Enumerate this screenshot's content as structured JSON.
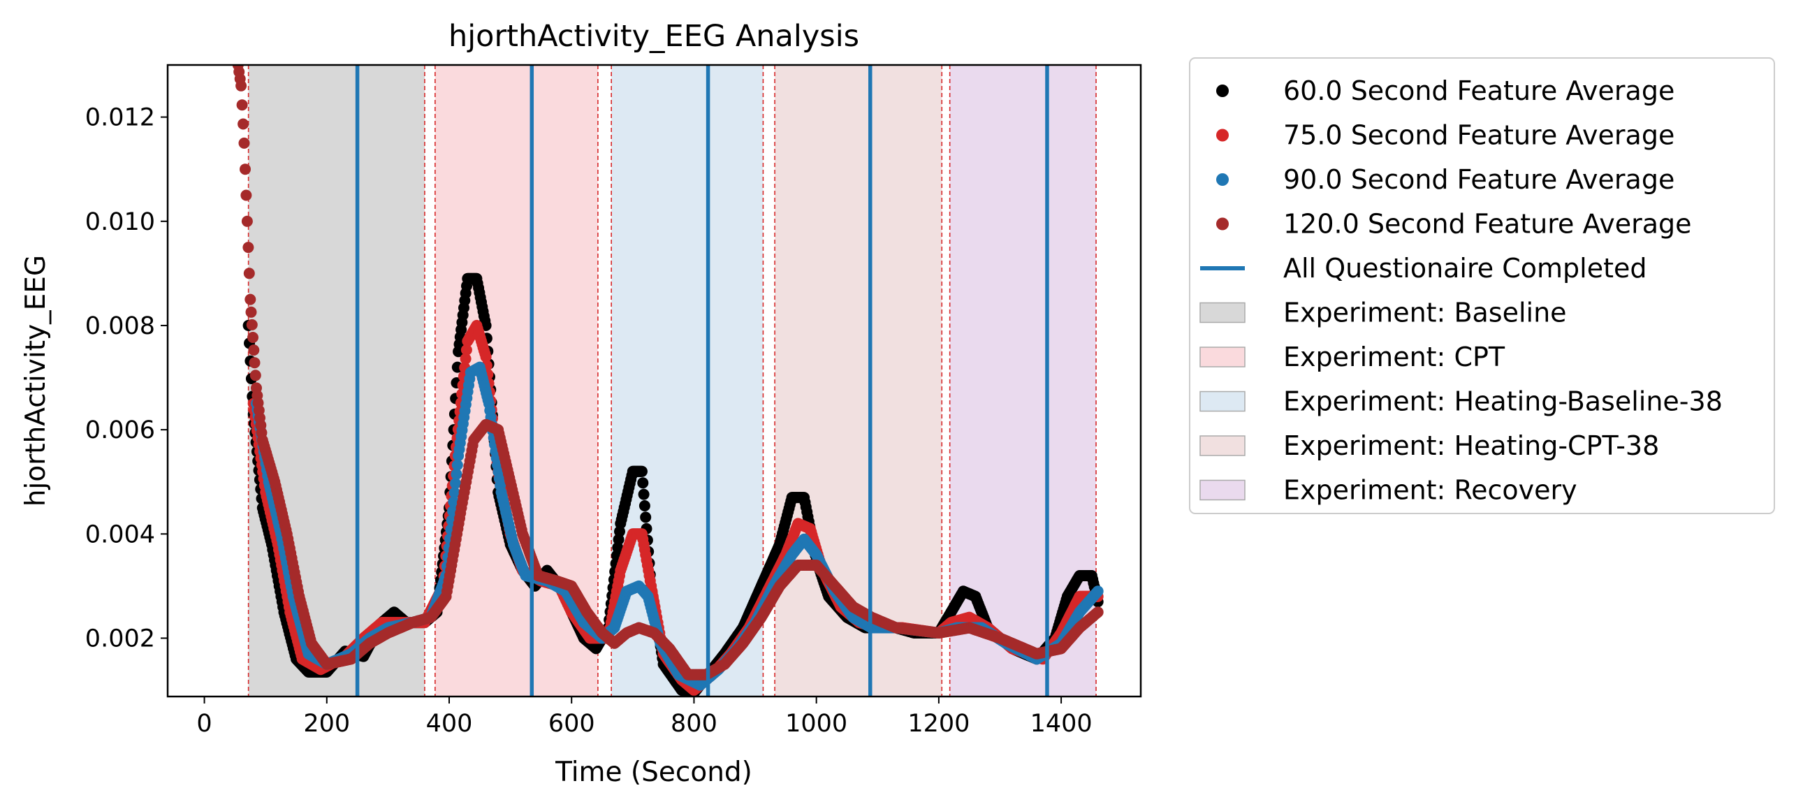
{
  "chart_data": {
    "type": "scatter",
    "title": "hjorthActivity_EEG Analysis",
    "xlabel": "Time (Second)",
    "ylabel": "hjorthActivity_EEG",
    "xlim": [
      -60,
      1530
    ],
    "ylim": [
      0.00088,
      0.013
    ],
    "xticks": [
      0,
      200,
      400,
      600,
      800,
      1000,
      1200,
      1400
    ],
    "yticks": [
      0.002,
      0.004,
      0.006,
      0.008,
      0.01,
      0.012
    ],
    "ytick_labels": [
      "0.002",
      "0.004",
      "0.006",
      "0.008",
      "0.010",
      "0.012"
    ],
    "legend_position": "outside-right",
    "phases": [
      {
        "name": "Baseline",
        "start": 72,
        "end": 360,
        "color": "#d8d8d8"
      },
      {
        "name": "CPT",
        "start": 377,
        "end": 643,
        "color": "#fadadd"
      },
      {
        "name": "Heating-Baseline-38",
        "start": 665,
        "end": 913,
        "color": "#dde9f3"
      },
      {
        "name": "Heating-CPT-38",
        "start": 932,
        "end": 1205,
        "color": "#f1e0e0"
      },
      {
        "name": "Recovery",
        "start": 1218,
        "end": 1457,
        "color": "#eadaee"
      }
    ],
    "questionnaire_completed": [
      250,
      535,
      823,
      1088,
      1377
    ],
    "series": [
      {
        "name": "60.0 Second Feature Average",
        "color": "#000000",
        "points": [
          [
            72,
            0.008
          ],
          [
            80,
            0.0063
          ],
          [
            95,
            0.0045
          ],
          [
            110,
            0.0038
          ],
          [
            130,
            0.0025
          ],
          [
            150,
            0.0016
          ],
          [
            170,
            0.00135
          ],
          [
            200,
            0.00135
          ],
          [
            230,
            0.00175
          ],
          [
            260,
            0.00165
          ],
          [
            290,
            0.0023
          ],
          [
            310,
            0.0025
          ],
          [
            330,
            0.0023
          ],
          [
            360,
            0.0023
          ],
          [
            380,
            0.0025
          ],
          [
            400,
            0.0045
          ],
          [
            415,
            0.0075
          ],
          [
            430,
            0.0089
          ],
          [
            445,
            0.0089
          ],
          [
            460,
            0.008
          ],
          [
            480,
            0.0048
          ],
          [
            500,
            0.0038
          ],
          [
            520,
            0.0033
          ],
          [
            540,
            0.003
          ],
          [
            560,
            0.0033
          ],
          [
            580,
            0.003
          ],
          [
            600,
            0.0025
          ],
          [
            620,
            0.002
          ],
          [
            640,
            0.0018
          ],
          [
            660,
            0.0022
          ],
          [
            680,
            0.0042
          ],
          [
            700,
            0.0052
          ],
          [
            715,
            0.0052
          ],
          [
            730,
            0.003
          ],
          [
            750,
            0.0015
          ],
          [
            780,
            0.001
          ],
          [
            800,
            0.00095
          ],
          [
            823,
            0.0013
          ],
          [
            850,
            0.0017
          ],
          [
            880,
            0.0022
          ],
          [
            910,
            0.003
          ],
          [
            940,
            0.0038
          ],
          [
            960,
            0.0047
          ],
          [
            980,
            0.0047
          ],
          [
            1000,
            0.0035
          ],
          [
            1020,
            0.0028
          ],
          [
            1050,
            0.0024
          ],
          [
            1080,
            0.0022
          ],
          [
            1100,
            0.0022
          ],
          [
            1130,
            0.0022
          ],
          [
            1160,
            0.0021
          ],
          [
            1200,
            0.0021
          ],
          [
            1220,
            0.0025
          ],
          [
            1240,
            0.0029
          ],
          [
            1260,
            0.0028
          ],
          [
            1280,
            0.0022
          ],
          [
            1320,
            0.0018
          ],
          [
            1360,
            0.0016
          ],
          [
            1390,
            0.002
          ],
          [
            1410,
            0.0028
          ],
          [
            1430,
            0.0032
          ],
          [
            1450,
            0.0032
          ],
          [
            1460,
            0.0027
          ]
        ]
      },
      {
        "name": "75.0 Second Feature Average",
        "color": "#d62728",
        "points": [
          [
            80,
            0.0065
          ],
          [
            100,
            0.0048
          ],
          [
            120,
            0.0038
          ],
          [
            140,
            0.0025
          ],
          [
            160,
            0.0016
          ],
          [
            190,
            0.0014
          ],
          [
            230,
            0.00165
          ],
          [
            260,
            0.002
          ],
          [
            290,
            0.0023
          ],
          [
            330,
            0.0023
          ],
          [
            360,
            0.0023
          ],
          [
            390,
            0.003
          ],
          [
            410,
            0.0055
          ],
          [
            430,
            0.0077
          ],
          [
            445,
            0.008
          ],
          [
            460,
            0.0074
          ],
          [
            480,
            0.0052
          ],
          [
            500,
            0.004
          ],
          [
            520,
            0.0033
          ],
          [
            550,
            0.0031
          ],
          [
            580,
            0.003
          ],
          [
            600,
            0.0025
          ],
          [
            630,
            0.002
          ],
          [
            660,
            0.002
          ],
          [
            680,
            0.0033
          ],
          [
            700,
            0.004
          ],
          [
            715,
            0.004
          ],
          [
            730,
            0.003
          ],
          [
            750,
            0.0017
          ],
          [
            780,
            0.0012
          ],
          [
            800,
            0.001
          ],
          [
            830,
            0.0013
          ],
          [
            860,
            0.0017
          ],
          [
            890,
            0.0022
          ],
          [
            920,
            0.0029
          ],
          [
            950,
            0.0036
          ],
          [
            970,
            0.0042
          ],
          [
            990,
            0.0041
          ],
          [
            1010,
            0.0033
          ],
          [
            1040,
            0.0026
          ],
          [
            1070,
            0.0023
          ],
          [
            1100,
            0.0022
          ],
          [
            1140,
            0.0022
          ],
          [
            1200,
            0.0021
          ],
          [
            1220,
            0.0023
          ],
          [
            1250,
            0.0024
          ],
          [
            1280,
            0.0022
          ],
          [
            1320,
            0.0018
          ],
          [
            1370,
            0.0016
          ],
          [
            1400,
            0.0021
          ],
          [
            1430,
            0.0028
          ],
          [
            1460,
            0.0028
          ]
        ]
      },
      {
        "name": "90.0 Second Feature Average",
        "color": "#1f77b4",
        "points": [
          [
            85,
            0.0065
          ],
          [
            105,
            0.005
          ],
          [
            125,
            0.004
          ],
          [
            145,
            0.0028
          ],
          [
            170,
            0.0017
          ],
          [
            200,
            0.0015
          ],
          [
            240,
            0.0017
          ],
          [
            270,
            0.002
          ],
          [
            300,
            0.0022
          ],
          [
            340,
            0.0023
          ],
          [
            370,
            0.0024
          ],
          [
            395,
            0.0032
          ],
          [
            415,
            0.0055
          ],
          [
            435,
            0.0071
          ],
          [
            450,
            0.0072
          ],
          [
            465,
            0.0065
          ],
          [
            485,
            0.0048
          ],
          [
            505,
            0.0038
          ],
          [
            525,
            0.0032
          ],
          [
            560,
            0.0031
          ],
          [
            590,
            0.0029
          ],
          [
            620,
            0.0023
          ],
          [
            650,
            0.002
          ],
          [
            670,
            0.0022
          ],
          [
            690,
            0.0029
          ],
          [
            710,
            0.003
          ],
          [
            725,
            0.0028
          ],
          [
            745,
            0.0019
          ],
          [
            775,
            0.0013
          ],
          [
            810,
            0.0011
          ],
          [
            840,
            0.0014
          ],
          [
            870,
            0.0018
          ],
          [
            900,
            0.0023
          ],
          [
            930,
            0.003
          ],
          [
            960,
            0.0036
          ],
          [
            980,
            0.0039
          ],
          [
            1000,
            0.0036
          ],
          [
            1030,
            0.0029
          ],
          [
            1060,
            0.0024
          ],
          [
            1090,
            0.0022
          ],
          [
            1130,
            0.0022
          ],
          [
            1200,
            0.0021
          ],
          [
            1230,
            0.0022
          ],
          [
            1270,
            0.0022
          ],
          [
            1310,
            0.0019
          ],
          [
            1360,
            0.0016
          ],
          [
            1400,
            0.0019
          ],
          [
            1430,
            0.0025
          ],
          [
            1460,
            0.0029
          ]
        ]
      },
      {
        "name": "120.0 Second Feature Average",
        "color": "#a52a2a",
        "points": [
          [
            55,
            0.013
          ],
          [
            60,
            0.0126
          ],
          [
            65,
            0.0115
          ],
          [
            70,
            0.01
          ],
          [
            75,
            0.0085
          ],
          [
            85,
            0.0068
          ],
          [
            95,
            0.0058
          ],
          [
            115,
            0.005
          ],
          [
            135,
            0.004
          ],
          [
            155,
            0.0028
          ],
          [
            175,
            0.0019
          ],
          [
            200,
            0.0015
          ],
          [
            240,
            0.0016
          ],
          [
            270,
            0.0019
          ],
          [
            300,
            0.0021
          ],
          [
            340,
            0.0023
          ],
          [
            370,
            0.0024
          ],
          [
            395,
            0.0028
          ],
          [
            420,
            0.0045
          ],
          [
            440,
            0.0058
          ],
          [
            460,
            0.0061
          ],
          [
            480,
            0.006
          ],
          [
            500,
            0.005
          ],
          [
            520,
            0.004
          ],
          [
            545,
            0.0032
          ],
          [
            575,
            0.0031
          ],
          [
            600,
            0.003
          ],
          [
            625,
            0.0025
          ],
          [
            650,
            0.0021
          ],
          [
            670,
            0.0019
          ],
          [
            690,
            0.0021
          ],
          [
            710,
            0.0022
          ],
          [
            735,
            0.0021
          ],
          [
            760,
            0.0018
          ],
          [
            790,
            0.0013
          ],
          [
            820,
            0.0013
          ],
          [
            850,
            0.0015
          ],
          [
            880,
            0.0019
          ],
          [
            910,
            0.0024
          ],
          [
            940,
            0.003
          ],
          [
            970,
            0.0034
          ],
          [
            1000,
            0.0034
          ],
          [
            1030,
            0.003
          ],
          [
            1060,
            0.0026
          ],
          [
            1090,
            0.0024
          ],
          [
            1130,
            0.0022
          ],
          [
            1200,
            0.0021
          ],
          [
            1250,
            0.0022
          ],
          [
            1300,
            0.002
          ],
          [
            1360,
            0.0017
          ],
          [
            1400,
            0.0018
          ],
          [
            1430,
            0.0022
          ],
          [
            1460,
            0.0025
          ]
        ]
      }
    ],
    "legend": [
      {
        "label": "60.0 Second Feature Average",
        "kind": "dot",
        "color": "#000000"
      },
      {
        "label": "75.0 Second Feature Average",
        "kind": "dot",
        "color": "#d62728"
      },
      {
        "label": "90.0 Second Feature Average",
        "kind": "dot",
        "color": "#1f77b4"
      },
      {
        "label": "120.0 Second Feature Average",
        "kind": "dot",
        "color": "#a52a2a"
      },
      {
        "label": "All Questionaire Completed",
        "kind": "line",
        "color": "#1f77b4"
      },
      {
        "label": "Experiment: Baseline",
        "kind": "patch",
        "color": "#d8d8d8"
      },
      {
        "label": "Experiment: CPT",
        "kind": "patch",
        "color": "#fadadd"
      },
      {
        "label": "Experiment: Heating-Baseline-38",
        "kind": "patch",
        "color": "#dde9f3"
      },
      {
        "label": "Experiment: Heating-CPT-38",
        "kind": "patch",
        "color": "#f1e0e0"
      },
      {
        "label": "Experiment: Recovery",
        "kind": "patch",
        "color": "#eadaee"
      }
    ]
  }
}
